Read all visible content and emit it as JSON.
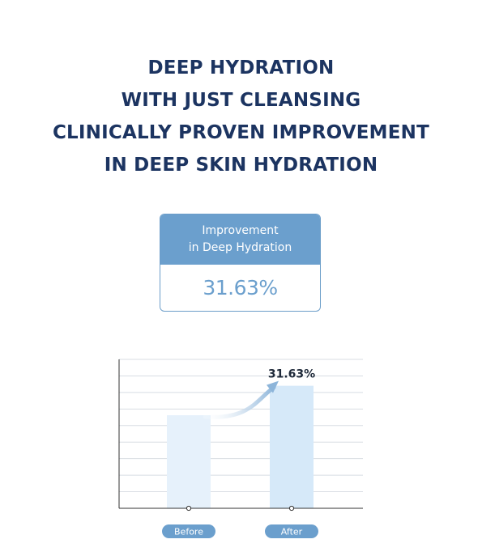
{
  "headline": {
    "lines": [
      "DEEP HYDRATION",
      "WITH JUST CLEANSING",
      "CLINICALLY PROVEN IMPROVEMENT",
      "IN DEEP SKIN HYDRATION"
    ]
  },
  "stat_card": {
    "label_line1": "Improvement",
    "label_line2": "in Deep Hydration",
    "value": "31.63%"
  },
  "colors": {
    "headline": "#1c3461",
    "accent": "#6b9fcd",
    "bar_before": "#e6f1fb",
    "bar_after": "#d6e9f9",
    "arrow": "#8db5da",
    "gridline": "#d8dde3",
    "axis": "#333333"
  },
  "chart_data": {
    "type": "bar",
    "categories": [
      "Before",
      "After"
    ],
    "values": [
      100,
      131.63
    ],
    "ylim": [
      0,
      160
    ],
    "grid": true,
    "data_labels": [
      "",
      "31.63%"
    ],
    "annotation": "arrow from Before to After indicating increase"
  }
}
